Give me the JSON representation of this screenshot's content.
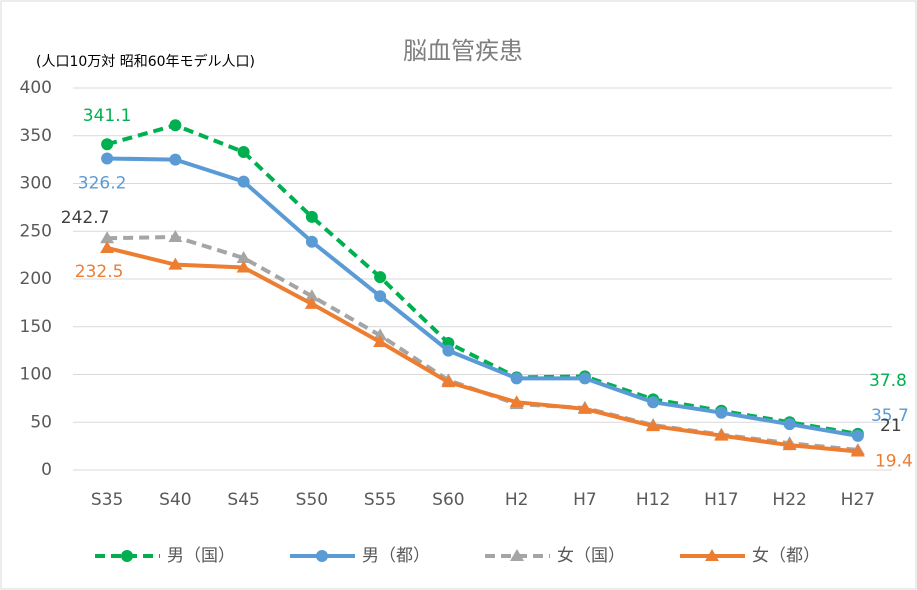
{
  "chart_data": {
    "type": "line",
    "title": "脳血管疾患",
    "subtitle": "(人口10万対 昭和60年モデル人口)",
    "categories": [
      "S35",
      "S40",
      "S45",
      "S50",
      "S55",
      "S60",
      "H2",
      "H7",
      "H12",
      "H17",
      "H22",
      "H27"
    ],
    "series": [
      {
        "name": "男（国）",
        "color": "#00b050",
        "dash": true,
        "marker": "circle",
        "values": [
          341.1,
          361,
          333,
          265,
          202,
          133,
          97,
          98,
          74,
          62,
          50,
          37.8
        ]
      },
      {
        "name": "男（都）",
        "color": "#5b9bd5",
        "dash": false,
        "marker": "circle",
        "values": [
          326.2,
          325,
          302,
          239,
          182,
          125,
          96,
          96,
          71,
          60,
          48,
          35.7
        ]
      },
      {
        "name": "女（国）",
        "color": "#a5a5a5",
        "dash": true,
        "marker": "triangle",
        "values": [
          242.7,
          244,
          222,
          182,
          141,
          94,
          69,
          65,
          47,
          37,
          28,
          21
        ]
      },
      {
        "name": "女（都）",
        "color": "#ed7d31",
        "dash": false,
        "marker": "triangle",
        "values": [
          232.5,
          215,
          212,
          174,
          134,
          92,
          71,
          64,
          46,
          36,
          26,
          19.4
        ]
      }
    ],
    "ylim": [
      0,
      400
    ],
    "yticks": [
      0,
      50,
      100,
      150,
      200,
      250,
      300,
      350,
      400
    ],
    "grid": true,
    "legend": "bottom"
  }
}
